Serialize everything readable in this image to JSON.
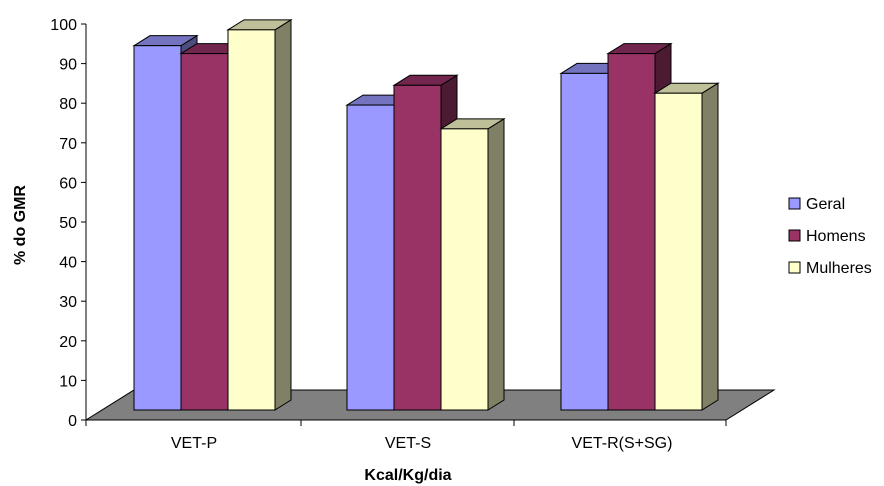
{
  "chart_data": {
    "type": "bar",
    "style": "3d-clustered-column",
    "categories": [
      "VET-P",
      "VET-S",
      "VET-R(S+SG)"
    ],
    "series": [
      {
        "name": "Geral",
        "values": [
          92,
          77,
          85
        ],
        "color": "#9999ff"
      },
      {
        "name": "Homens",
        "values": [
          90,
          82,
          90
        ],
        "color": "#993366"
      },
      {
        "name": "Mulheres",
        "values": [
          96,
          71,
          80
        ],
        "color": "#ffffcc"
      }
    ],
    "xlabel": "Kcal/Kg/dia",
    "ylabel": "% do GMR",
    "ylim": [
      0,
      100
    ],
    "yticks": [
      "0",
      "10",
      "20",
      "30",
      "40",
      "50",
      "60",
      "70",
      "80",
      "90",
      "100"
    ],
    "grid": false,
    "legend_position": "right",
    "floor_color": "#808080"
  }
}
